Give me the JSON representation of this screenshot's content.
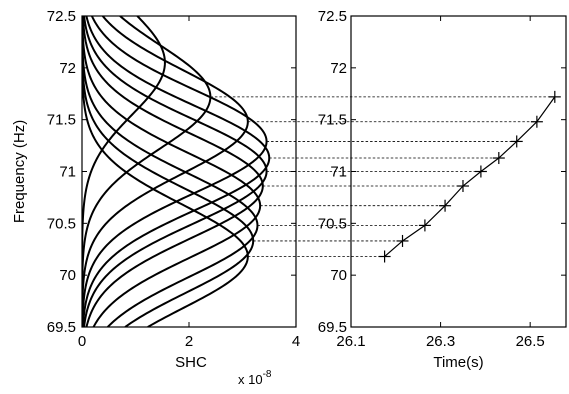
{
  "chart_data": [
    {
      "type": "line",
      "xlabel": "SHC",
      "ylabel": "Frequency (Hz)",
      "xlim": [
        0,
        4
      ],
      "ylim": [
        69.5,
        72.5
      ],
      "x_ticks": [
        "0",
        "2",
        "4"
      ],
      "y_ticks": [
        "69.5",
        "70",
        "70.5",
        "71",
        "71.5",
        "72",
        "72.5"
      ],
      "x_exponent_base": "x 10",
      "x_exponent_power": "-8",
      "curve_sigma_hz": 0.5,
      "series": [
        {
          "peak_x": 3.1,
          "center_y": 70.18
        },
        {
          "peak_x": 3.2,
          "center_y": 70.33
        },
        {
          "peak_x": 3.28,
          "center_y": 70.48
        },
        {
          "peak_x": 3.33,
          "center_y": 70.67
        },
        {
          "peak_x": 3.38,
          "center_y": 70.86
        },
        {
          "peak_x": 3.45,
          "center_y": 71.0
        },
        {
          "peak_x": 3.5,
          "center_y": 71.13
        },
        {
          "peak_x": 3.45,
          "center_y": 71.29
        },
        {
          "peak_x": 3.1,
          "center_y": 71.48
        },
        {
          "peak_x": 2.4,
          "center_y": 71.72
        },
        {
          "peak_x": 1.55,
          "center_y": 72.05
        }
      ]
    },
    {
      "type": "line",
      "xlabel": "Time(s)",
      "ylabel": "",
      "xlim": [
        26.1,
        26.58
      ],
      "ylim": [
        69.5,
        72.5
      ],
      "x_ticks": [
        "26.1",
        "26.3",
        "26.5"
      ],
      "y_ticks": [
        "69.5",
        "70",
        "70.5",
        "71",
        "71.5",
        "72",
        "72.5"
      ],
      "marker": "+",
      "series": [
        {
          "x": [
            26.175,
            26.215,
            26.265,
            26.31,
            26.35,
            26.39,
            26.43,
            26.47,
            26.515,
            26.555
          ],
          "y": [
            70.18,
            70.33,
            70.48,
            70.67,
            70.86,
            71.0,
            71.13,
            71.29,
            71.48,
            71.72
          ]
        }
      ]
    }
  ]
}
